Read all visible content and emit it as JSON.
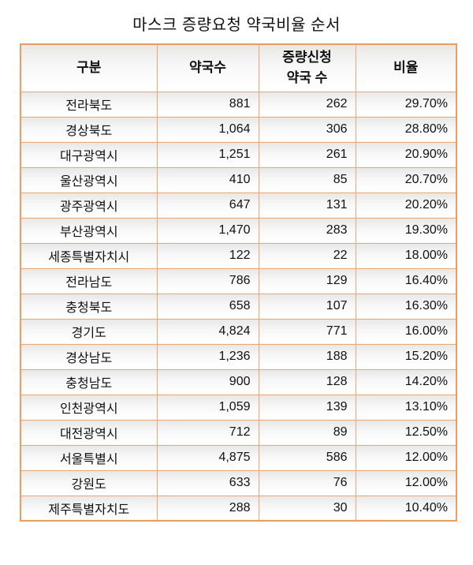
{
  "title": "마스크 증량요청 약국비율 순서",
  "colors": {
    "table_border": "#ef9d5e",
    "cell_border": "#f3a76f",
    "cell_gradient_top": "#e8e8e8",
    "cell_gradient_bottom": "#ffffff",
    "text": "#111111"
  },
  "chart_data": {
    "type": "table",
    "title": "마스크 증량요청 약국비율 순서",
    "columns": [
      "구분",
      "약국수",
      "증량신청\n약국 수",
      "비율"
    ],
    "rows": [
      {
        "region": "전라북도",
        "pharmacies": "881",
        "requested": "262",
        "ratio": "29.70%"
      },
      {
        "region": "경상북도",
        "pharmacies": "1,064",
        "requested": "306",
        "ratio": "28.80%"
      },
      {
        "region": "대구광역시",
        "pharmacies": "1,251",
        "requested": "261",
        "ratio": "20.90%"
      },
      {
        "region": "울산광역시",
        "pharmacies": "410",
        "requested": "85",
        "ratio": "20.70%"
      },
      {
        "region": "광주광역시",
        "pharmacies": "647",
        "requested": "131",
        "ratio": "20.20%"
      },
      {
        "region": "부산광역시",
        "pharmacies": "1,470",
        "requested": "283",
        "ratio": "19.30%"
      },
      {
        "region": "세종특별자치시",
        "pharmacies": "122",
        "requested": "22",
        "ratio": "18.00%"
      },
      {
        "region": "전라남도",
        "pharmacies": "786",
        "requested": "129",
        "ratio": "16.40%"
      },
      {
        "region": "충청북도",
        "pharmacies": "658",
        "requested": "107",
        "ratio": "16.30%"
      },
      {
        "region": "경기도",
        "pharmacies": "4,824",
        "requested": "771",
        "ratio": "16.00%"
      },
      {
        "region": "경상남도",
        "pharmacies": "1,236",
        "requested": "188",
        "ratio": "15.20%"
      },
      {
        "region": "충청남도",
        "pharmacies": "900",
        "requested": "128",
        "ratio": "14.20%"
      },
      {
        "region": "인천광역시",
        "pharmacies": "1,059",
        "requested": "139",
        "ratio": "13.10%"
      },
      {
        "region": "대전광역시",
        "pharmacies": "712",
        "requested": "89",
        "ratio": "12.50%"
      },
      {
        "region": "서울특별시",
        "pharmacies": "4,875",
        "requested": "586",
        "ratio": "12.00%"
      },
      {
        "region": "강원도",
        "pharmacies": "633",
        "requested": "76",
        "ratio": "12.00%"
      },
      {
        "region": "제주특별자치도",
        "pharmacies": "288",
        "requested": "30",
        "ratio": "10.40%"
      }
    ]
  }
}
